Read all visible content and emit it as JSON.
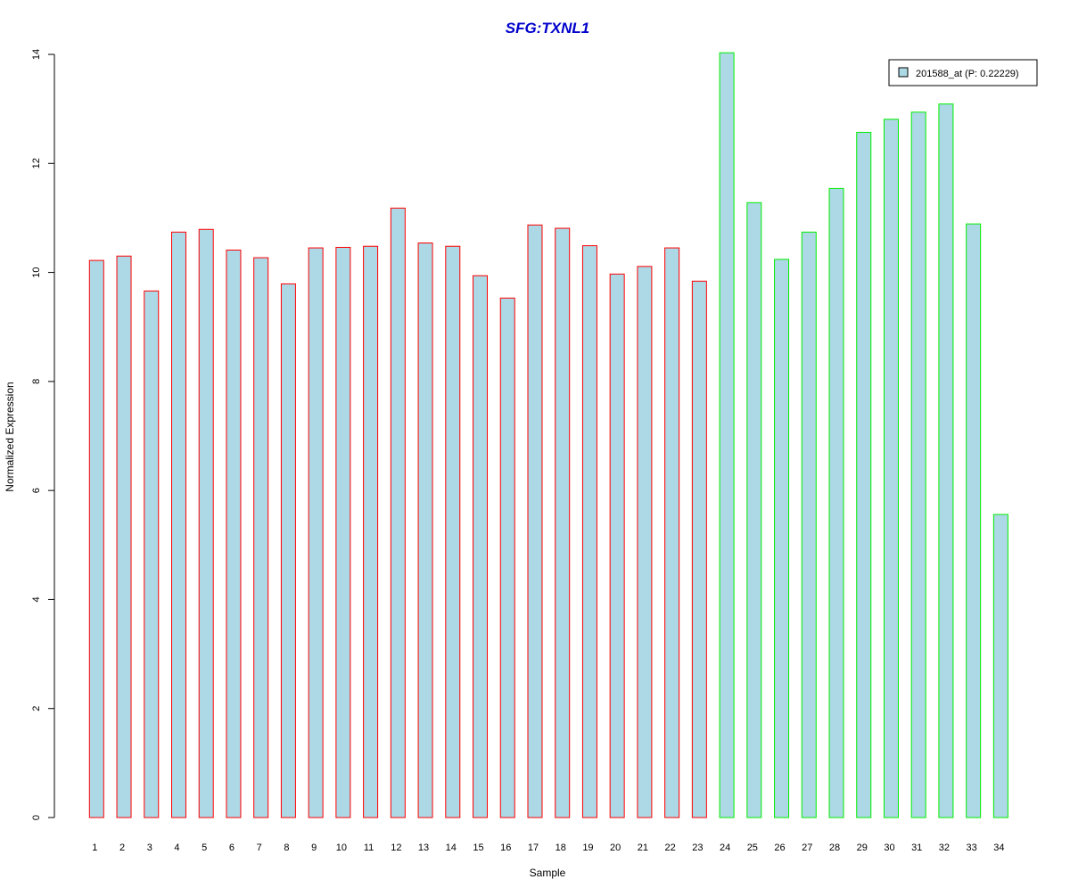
{
  "chart_data": {
    "type": "bar",
    "title": "SFG:TXNL1",
    "xlabel": "Sample",
    "ylabel": "Normalized Expression",
    "ylim": [
      0,
      14
    ],
    "yticks": [
      0,
      2,
      4,
      6,
      8,
      10,
      12,
      14
    ],
    "grid": false,
    "legend_position": "top-right",
    "legend_label": "201588_at (P: 0.22229)",
    "categories": [
      "1",
      "2",
      "3",
      "4",
      "5",
      "6",
      "7",
      "8",
      "9",
      "10",
      "11",
      "12",
      "13",
      "14",
      "15",
      "16",
      "17",
      "18",
      "19",
      "20",
      "21",
      "22",
      "23",
      "24",
      "25",
      "26",
      "27",
      "28",
      "29",
      "30",
      "31",
      "32",
      "33",
      "34"
    ],
    "values": [
      10.22,
      10.3,
      9.66,
      10.74,
      10.79,
      10.41,
      10.27,
      9.79,
      10.45,
      10.46,
      10.48,
      11.18,
      10.54,
      10.48,
      9.94,
      9.53,
      10.87,
      10.81,
      10.49,
      9.97,
      10.11,
      10.45,
      9.84,
      14.03,
      11.28,
      10.24,
      10.74,
      11.54,
      12.57,
      12.81,
      12.94,
      13.09,
      10.89,
      5.56
    ],
    "groups": [
      "red",
      "red",
      "red",
      "red",
      "red",
      "red",
      "red",
      "red",
      "red",
      "red",
      "red",
      "red",
      "red",
      "red",
      "red",
      "red",
      "red",
      "red",
      "red",
      "red",
      "red",
      "red",
      "red",
      "green",
      "green",
      "green",
      "green",
      "green",
      "green",
      "green",
      "green",
      "green",
      "green",
      "green"
    ],
    "colors": {
      "title": "#0000cc",
      "bar_fill": "#add8e6",
      "border_red": "#ff0000",
      "border_green": "#00ee00",
      "axis": "#000000"
    }
  }
}
